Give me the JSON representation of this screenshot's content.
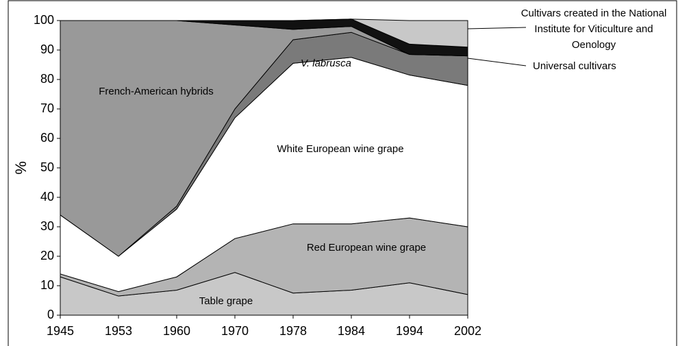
{
  "chart_data": {
    "type": "stacked_area",
    "y_label": "%",
    "categories": [
      "1945",
      "1953",
      "1960",
      "1970",
      "1978",
      "1984",
      "1994",
      "2002"
    ],
    "ylim": [
      0,
      100
    ],
    "yticks": [
      0,
      10,
      20,
      30,
      40,
      50,
      60,
      70,
      80,
      90,
      100
    ],
    "series": [
      {
        "name": "Table grape",
        "color": "#c8c8c8",
        "values": [
          13,
          6.5,
          8.5,
          14.5,
          7.5,
          8.5,
          11,
          7
        ]
      },
      {
        "name": "Red European wine grape",
        "color": "#b4b4b4",
        "values": [
          1,
          1.5,
          4.5,
          11.5,
          23.5,
          22.5,
          22,
          23
        ]
      },
      {
        "name": "White European wine grape",
        "color": "#ffffff",
        "values": [
          20,
          12,
          23,
          41,
          54.5,
          56.5,
          48.5,
          48
        ]
      },
      {
        "name": "V. labrusca",
        "color": "#7a7a7a",
        "values": [
          0,
          0,
          1,
          3,
          8,
          8.5,
          7,
          10
        ]
      },
      {
        "name": "French-American hybrids",
        "color": "#999999",
        "values": [
          66,
          80,
          63,
          28.5,
          3.5,
          2,
          0,
          0
        ]
      },
      {
        "name": "Universal cultivars",
        "color": "#111111",
        "values": [
          0,
          0,
          0,
          1.5,
          3,
          2.5,
          3.5,
          3
        ]
      },
      {
        "name": "Cultivars created in the National Institute for Viticulture and Oenology",
        "color": "#c8c8c8",
        "values": [
          0,
          0,
          0,
          0,
          0,
          0,
          8,
          9
        ]
      }
    ]
  }
}
